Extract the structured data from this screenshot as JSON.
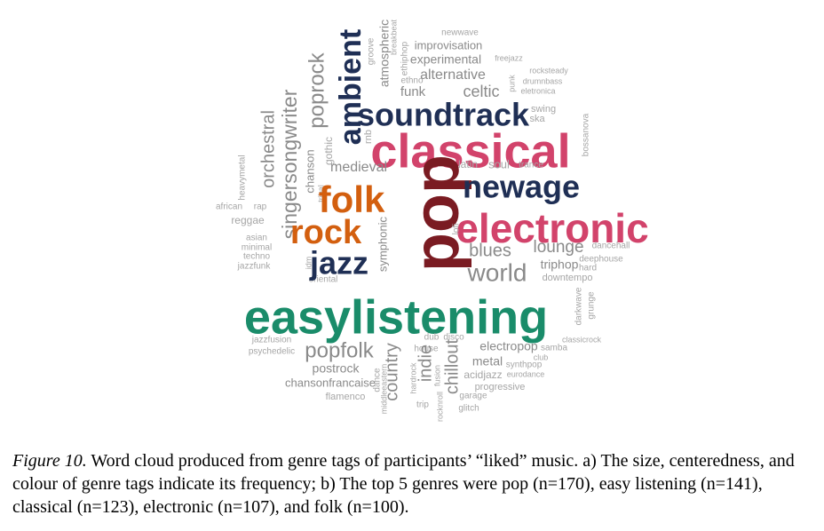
{
  "colors": {
    "pop": "#7a1b22",
    "easylistening": "#1a8c6a",
    "classical": "#d2436b",
    "electronic": "#d2436b",
    "folk": "#d35f0f",
    "rock": "#d35f0f",
    "soundtrack": "#1f2f55",
    "newage": "#1f2f55",
    "ambient": "#1f2f55",
    "jazz": "#1f2f55",
    "grey": "#8a8a8a",
    "lightgrey": "#a6a6a6"
  },
  "words": [
    {
      "text": "newwave",
      "tier": "tiny"
    },
    {
      "text": "improvisation",
      "tier": "small"
    },
    {
      "text": "freejazz",
      "tier": "tiny"
    },
    {
      "text": "experimental",
      "tier": "small"
    },
    {
      "text": "alternative",
      "tier": "medium"
    },
    {
      "text": "rocksteady",
      "tier": "tiny"
    },
    {
      "text": "drumnbass",
      "tier": "tiny"
    },
    {
      "text": "eletronica",
      "tier": "tiny"
    },
    {
      "text": "ethno",
      "tier": "tiny"
    },
    {
      "text": "funk",
      "tier": "small"
    },
    {
      "text": "celtic",
      "tier": "medium"
    },
    {
      "text": "punk",
      "tier": "tiny"
    },
    {
      "text": "groove",
      "tier": "tiny"
    },
    {
      "text": "atmospheric",
      "tier": "small"
    },
    {
      "text": "breakbeat",
      "tier": "tiny"
    },
    {
      "text": "ethiphop",
      "tier": "tiny"
    },
    {
      "text": "swing",
      "tier": "tiny"
    },
    {
      "text": "ska",
      "tier": "tiny"
    },
    {
      "text": "soundtrack",
      "tier": "large"
    },
    {
      "text": "classical",
      "tier": "top"
    },
    {
      "text": "bossanova",
      "tier": "tiny"
    },
    {
      "text": "ambient",
      "tier": "large"
    },
    {
      "text": "poprock",
      "tier": "medium"
    },
    {
      "text": "singersongwriter",
      "tier": "medium"
    },
    {
      "text": "orchestral",
      "tier": "medium"
    },
    {
      "text": "heavymetal",
      "tier": "tiny"
    },
    {
      "text": "rnb",
      "tier": "tiny"
    },
    {
      "text": "gothic",
      "tier": "tiny"
    },
    {
      "text": "chanson",
      "tier": "small"
    },
    {
      "text": "tribal",
      "tier": "tiny"
    },
    {
      "text": "medieval",
      "tier": "small"
    },
    {
      "text": "latin",
      "tier": "tiny"
    },
    {
      "text": "soul",
      "tier": "tiny"
    },
    {
      "text": "trance",
      "tier": "tiny"
    },
    {
      "text": "folk",
      "tier": "large"
    },
    {
      "text": "pop",
      "tier": "top"
    },
    {
      "text": "newage",
      "tier": "large"
    },
    {
      "text": "african",
      "tier": "tiny"
    },
    {
      "text": "rap",
      "tier": "tiny"
    },
    {
      "text": "reggae",
      "tier": "tiny"
    },
    {
      "text": "rock",
      "tier": "large"
    },
    {
      "text": "electronic",
      "tier": "top"
    },
    {
      "text": "asian",
      "tier": "tiny"
    },
    {
      "text": "minimal",
      "tier": "tiny"
    },
    {
      "text": "techno",
      "tier": "tiny"
    },
    {
      "text": "jazzfunk",
      "tier": "tiny"
    },
    {
      "text": "idm",
      "tier": "tiny"
    },
    {
      "text": "oriental",
      "tier": "tiny"
    },
    {
      "text": "jazz",
      "tier": "large"
    },
    {
      "text": "symphonic",
      "tier": "small"
    },
    {
      "text": "lofi",
      "tier": "tiny"
    },
    {
      "text": "blues",
      "tier": "medium"
    },
    {
      "text": "lounge",
      "tier": "medium"
    },
    {
      "text": "dancehall",
      "tier": "tiny"
    },
    {
      "text": "deephouse",
      "tier": "tiny"
    },
    {
      "text": "world",
      "tier": "medium"
    },
    {
      "text": "triphop",
      "tier": "small"
    },
    {
      "text": "hard",
      "tier": "tiny"
    },
    {
      "text": "downtempo",
      "tier": "tiny"
    },
    {
      "text": "easylistening",
      "tier": "top"
    },
    {
      "text": "darkwave",
      "tier": "tiny"
    },
    {
      "text": "grunge",
      "tier": "tiny"
    },
    {
      "text": "jazzfusion",
      "tier": "tiny"
    },
    {
      "text": "psychedelic",
      "tier": "tiny"
    },
    {
      "text": "popfolk",
      "tier": "medium"
    },
    {
      "text": "dub",
      "tier": "tiny"
    },
    {
      "text": "disco",
      "tier": "tiny"
    },
    {
      "text": "house",
      "tier": "tiny"
    },
    {
      "text": "electropop",
      "tier": "small"
    },
    {
      "text": "samba",
      "tier": "tiny"
    },
    {
      "text": "classicrock",
      "tier": "tiny"
    },
    {
      "text": "club",
      "tier": "tiny"
    },
    {
      "text": "metal",
      "tier": "small"
    },
    {
      "text": "synthpop",
      "tier": "tiny"
    },
    {
      "text": "postrock",
      "tier": "small"
    },
    {
      "text": "acidjazz",
      "tier": "tiny"
    },
    {
      "text": "eurodance",
      "tier": "tiny"
    },
    {
      "text": "chansonfrancaise",
      "tier": "small"
    },
    {
      "text": "progressive",
      "tier": "tiny"
    },
    {
      "text": "flamenco",
      "tier": "tiny"
    },
    {
      "text": "garage",
      "tier": "tiny"
    },
    {
      "text": "glitch",
      "tier": "tiny"
    },
    {
      "text": "trip",
      "tier": "tiny"
    },
    {
      "text": "country",
      "tier": "medium"
    },
    {
      "text": "indie",
      "tier": "medium"
    },
    {
      "text": "chillout",
      "tier": "medium"
    },
    {
      "text": "dance",
      "tier": "tiny"
    },
    {
      "text": "middleeastern",
      "tier": "tiny"
    },
    {
      "text": "hardrock",
      "tier": "tiny"
    },
    {
      "text": "fusion",
      "tier": "tiny"
    },
    {
      "text": "rocknroll",
      "tier": "tiny"
    }
  ],
  "caption": {
    "label": "Figure 10.",
    "text": " Word cloud produced from genre tags of participants’ “liked” music. a) The size, centeredness, and colour of genre tags indicate its frequency; b) The top 5 genres were pop (n=170), easy listening (n=141), classical (n=123), electronic (n=107), and folk (n=100)."
  }
}
